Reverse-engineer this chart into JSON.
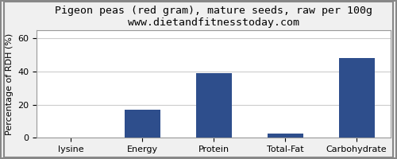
{
  "title": "Pigeon peas (red gram), mature seeds, raw per 100g",
  "subtitle": "www.dietandfitnesstoday.com",
  "ylabel": "Percentage of RDH (%)",
  "categories": [
    "lysine",
    "Energy",
    "Protein",
    "Total-Fat",
    "Carbohydrate"
  ],
  "values": [
    0.0,
    17.0,
    39.0,
    2.5,
    48.0
  ],
  "bar_color": "#2E4E8C",
  "ylim": [
    0,
    65
  ],
  "yticks": [
    0,
    20,
    40,
    60
  ],
  "bg_color": "#F0F0F0",
  "plot_bg_color": "#FFFFFF",
  "title_fontsize": 9.5,
  "subtitle_fontsize": 8.5,
  "ylabel_fontsize": 8,
  "tick_fontsize": 8,
  "bar_width": 0.5,
  "grid_color": "#CCCCCC"
}
